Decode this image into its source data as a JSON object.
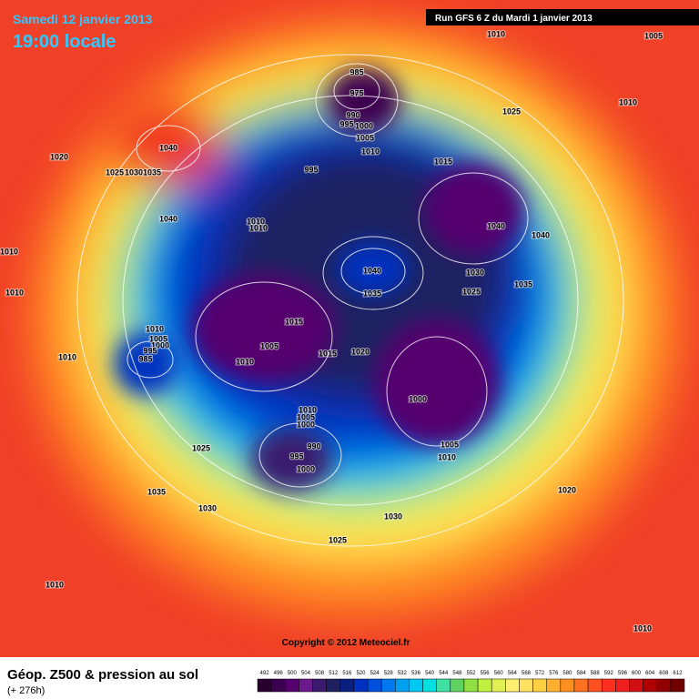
{
  "header": {
    "date": "Samedi 12 janvier 2013",
    "time": "19:00 locale",
    "run": "Run GFS 6 Z du Mardi 1 janvier 2013"
  },
  "copyright": "Copyright © 2012 Meteociel.fr",
  "footer": {
    "title": "Géop. Z500 & pression au sol",
    "lead": "(+ 276h)"
  },
  "legend": {
    "labels": [
      492,
      496,
      500,
      504,
      508,
      512,
      516,
      520,
      524,
      528,
      532,
      536,
      540,
      544,
      548,
      552,
      556,
      560,
      564,
      568,
      572,
      576,
      580,
      584,
      588,
      592,
      596,
      600,
      604,
      608,
      612
    ],
    "colors": [
      "#2a0030",
      "#3c0050",
      "#55006e",
      "#6a1a8a",
      "#3a1a6e",
      "#1e2060",
      "#0a2080",
      "#0030c0",
      "#0050e0",
      "#0078f0",
      "#00a0f0",
      "#00c8f0",
      "#00e0e0",
      "#40e0a0",
      "#60d060",
      "#90e040",
      "#c0f040",
      "#e0f050",
      "#fff070",
      "#ffe060",
      "#ffd040",
      "#ffb030",
      "#ff9020",
      "#ff7020",
      "#ff5020",
      "#ff3020",
      "#f02020",
      "#d01010",
      "#b00000",
      "#900000",
      "#700000"
    ]
  },
  "isobar_labels": [
    1010,
    1005,
    985,
    975,
    1025,
    1010,
    990,
    1000,
    995,
    1005,
    1010,
    1015,
    1040,
    1020,
    1025,
    1030,
    1035,
    995,
    1040,
    1010,
    1010,
    1040,
    1040,
    1010,
    1040,
    1030,
    1025,
    1035,
    1035,
    1010,
    1015,
    1010,
    1005,
    1000,
    995,
    985,
    1005,
    1015,
    1020,
    1010,
    1010,
    1000,
    1010,
    1005,
    1000,
    990,
    995,
    1000,
    1005,
    1010,
    1025,
    1035,
    1030,
    1020,
    1030,
    1025,
    1010,
    1010
  ]
}
